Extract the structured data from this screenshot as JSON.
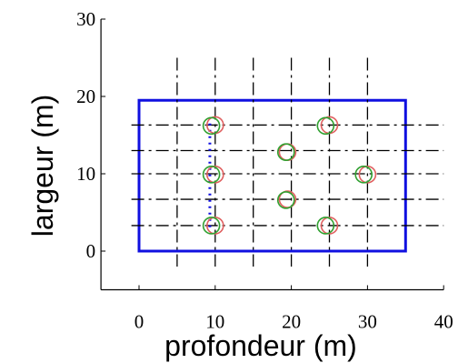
{
  "chart_data": {
    "type": "scatter",
    "title": "",
    "xlabel": "profondeur (m)",
    "ylabel": "largeur (m)",
    "xlim": [
      -5,
      40
    ],
    "ylim": [
      -5,
      30
    ],
    "x_ticks": [
      0,
      10,
      20,
      30,
      40
    ],
    "y_ticks": [
      0,
      10,
      20,
      30
    ],
    "grid": false,
    "rectangle": {
      "x": [
        0,
        35
      ],
      "y": [
        0,
        19.5
      ],
      "color": "#1010e0"
    },
    "vertical_dashdot_lines_x": [
      5,
      10,
      15,
      20,
      25,
      30
    ],
    "vertical_dashdot_lines_y_range": [
      -2,
      25
    ],
    "horizontal_dashdot_lines_y": [
      3.3,
      6.7,
      10,
      13,
      16.3
    ],
    "horizontal_dashdot_lines_x_range": [
      -1,
      40
    ],
    "blue_dotted_line": {
      "x": 9.3,
      "y": [
        2.5,
        16.5
      ]
    },
    "series": [
      {
        "marker": "circle",
        "color": "#e06060",
        "points": [
          [
            10,
            16.3
          ],
          [
            25,
            16.3
          ],
          [
            19.5,
            12.8
          ],
          [
            10,
            9.9
          ],
          [
            30,
            9.9
          ],
          [
            19.5,
            6.7
          ],
          [
            10,
            3.3
          ],
          [
            25,
            3.3
          ]
        ]
      },
      {
        "marker": "circle",
        "color": "#30a030",
        "points": [
          [
            9.5,
            16.2
          ],
          [
            24.5,
            16.2
          ],
          [
            19.3,
            12.8
          ],
          [
            9.5,
            9.9
          ],
          [
            29.5,
            9.9
          ],
          [
            19.3,
            6.6
          ],
          [
            9.5,
            3.3
          ],
          [
            24.5,
            3.3
          ]
        ]
      }
    ]
  }
}
